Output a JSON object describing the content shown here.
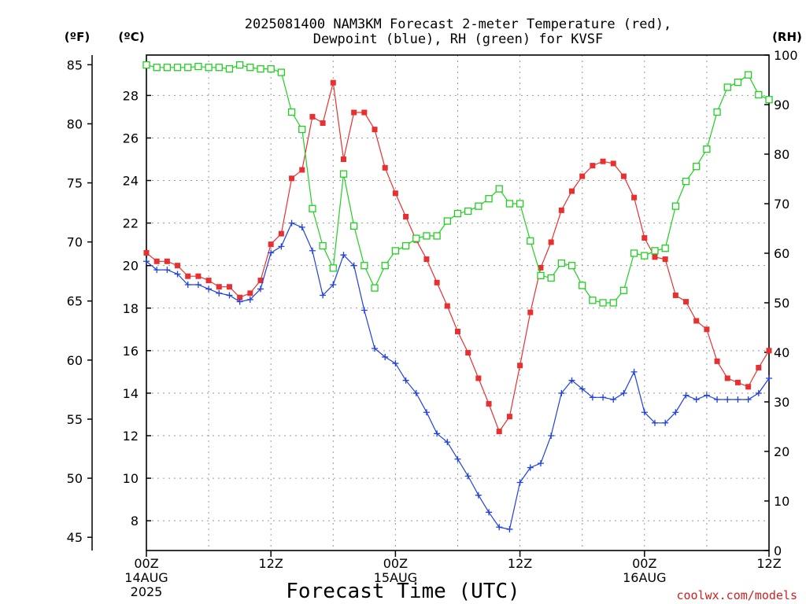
{
  "chart_data": {
    "type": "line",
    "title_line1": "2025081400 NAM3KM Forecast 2-meter Temperature (red),",
    "title_line2": "Dewpoint (blue), RH (green) for KVSF",
    "xlabel": "Forecast Time (UTC)",
    "credit": "coolwx.com/models",
    "unit_f": "(ºF)",
    "unit_c": "(ºC)",
    "unit_rh": "(RH)",
    "x_range_hours": [
      0,
      60
    ],
    "x_ticks": [
      {
        "hour": 0,
        "line1": "00Z",
        "line2": "14AUG",
        "line3": "2025"
      },
      {
        "hour": 12,
        "line1": "12Z",
        "line2": "",
        "line3": ""
      },
      {
        "hour": 24,
        "line1": "00Z",
        "line2": "15AUG",
        "line3": ""
      },
      {
        "hour": 36,
        "line1": "12Z",
        "line2": "",
        "line3": ""
      },
      {
        "hour": 48,
        "line1": "00Z",
        "line2": "16AUG",
        "line3": ""
      },
      {
        "hour": 60,
        "line1": "12Z",
        "line2": "",
        "line3": ""
      }
    ],
    "celsius_range": [
      6.6,
      29.9
    ],
    "celsius_ticks": [
      8,
      10,
      12,
      14,
      16,
      18,
      20,
      22,
      24,
      26,
      28
    ],
    "fahrenheit_ticks": [
      45,
      50,
      55,
      60,
      65,
      70,
      75,
      80,
      85
    ],
    "rh_range": [
      0,
      100
    ],
    "rh_ticks": [
      0,
      10,
      20,
      30,
      40,
      50,
      60,
      70,
      80,
      90,
      100
    ],
    "series": [
      {
        "name": "Temperature",
        "color": "#e83030",
        "marker": "filled-square",
        "x": [
          0,
          1,
          2,
          3,
          4,
          5,
          6,
          7,
          8,
          9,
          10,
          11,
          12,
          13,
          14,
          15,
          16,
          17,
          18,
          19,
          20,
          21,
          22,
          23,
          24,
          25,
          26,
          27,
          28,
          29,
          30,
          31,
          32,
          33,
          34,
          35,
          36,
          37,
          38,
          39,
          40,
          41,
          42,
          43,
          44,
          45,
          46,
          47,
          48,
          49,
          50,
          51,
          52,
          53,
          54,
          55,
          56,
          57,
          58,
          59,
          60
        ],
        "values": [
          20.6,
          20.2,
          20.2,
          20.0,
          19.5,
          19.5,
          19.3,
          19.0,
          19.0,
          18.5,
          18.7,
          19.3,
          21.0,
          21.5,
          24.1,
          24.5,
          27.0,
          26.7,
          28.6,
          25.0,
          27.2,
          27.2,
          26.4,
          24.6,
          23.4,
          22.3,
          21.2,
          20.3,
          19.2,
          18.1,
          16.9,
          15.9,
          14.7,
          13.5,
          12.2,
          12.9,
          15.3,
          17.8,
          19.9,
          21.1,
          22.6,
          23.5,
          24.2,
          24.7,
          24.9,
          24.8,
          24.2,
          23.2,
          21.3,
          20.4,
          20.3,
          18.6,
          18.3,
          17.4,
          17.0,
          15.5,
          14.7,
          14.5,
          14.3,
          15.2,
          16.0
        ]
      },
      {
        "name": "Dewpoint",
        "color": "#2040e0",
        "marker": "plus",
        "x": [
          0,
          1,
          2,
          3,
          4,
          5,
          6,
          7,
          8,
          9,
          10,
          11,
          12,
          13,
          14,
          15,
          16,
          17,
          18,
          19,
          20,
          21,
          22,
          23,
          24,
          25,
          26,
          27,
          28,
          29,
          30,
          31,
          32,
          33,
          34,
          35,
          36,
          37,
          38,
          39,
          40,
          41,
          42,
          43,
          44,
          45,
          46,
          47,
          48,
          49,
          50,
          51,
          52,
          53,
          54,
          55,
          56,
          57,
          58,
          59,
          60
        ],
        "values": [
          20.2,
          19.8,
          19.8,
          19.6,
          19.1,
          19.1,
          18.9,
          18.7,
          18.6,
          18.3,
          18.4,
          18.9,
          20.6,
          20.9,
          22.0,
          21.8,
          20.7,
          18.6,
          19.1,
          20.5,
          20.0,
          17.9,
          16.1,
          15.7,
          15.4,
          14.6,
          14.0,
          13.1,
          12.1,
          11.7,
          10.9,
          10.1,
          9.2,
          8.4,
          7.7,
          7.6,
          9.8,
          10.5,
          10.7,
          12.0,
          14.0,
          14.6,
          14.2,
          13.8,
          13.8,
          13.7,
          14.0,
          15.0,
          13.1,
          12.6,
          12.6,
          13.1,
          13.9,
          13.7,
          13.9,
          13.7,
          13.7,
          13.7,
          13.7,
          14.0,
          14.7
        ]
      },
      {
        "name": "RH",
        "color": "#20d020",
        "marker": "open-square",
        "x": [
          0,
          1,
          2,
          3,
          4,
          5,
          6,
          7,
          8,
          9,
          10,
          11,
          12,
          13,
          14,
          15,
          16,
          17,
          18,
          19,
          20,
          21,
          22,
          23,
          24,
          25,
          26,
          27,
          28,
          29,
          30,
          31,
          32,
          33,
          34,
          35,
          36,
          37,
          38,
          39,
          40,
          41,
          42,
          43,
          44,
          45,
          46,
          47,
          48,
          49,
          50,
          51,
          52,
          53,
          54,
          55,
          56,
          57,
          58,
          59,
          60
        ],
        "values": [
          98,
          97.5,
          97.5,
          97.5,
          97.5,
          97.7,
          97.5,
          97.5,
          97.2,
          98,
          97.5,
          97.2,
          97.2,
          96.5,
          88.5,
          85,
          69,
          61.5,
          57,
          76,
          65.5,
          57.5,
          53,
          57.5,
          60.5,
          61.5,
          63,
          63.5,
          63.5,
          66.5,
          68,
          68.5,
          69.5,
          71,
          73,
          70,
          70,
          62.5,
          55.5,
          55,
          58,
          57.5,
          53.5,
          50.5,
          50,
          50,
          52.5,
          60,
          59.5,
          60.5,
          61,
          69.5,
          74.5,
          77.5,
          81,
          88.5,
          93.5,
          94.5,
          96,
          92,
          91
        ]
      }
    ],
    "grid": "dotted",
    "legend": "none"
  }
}
